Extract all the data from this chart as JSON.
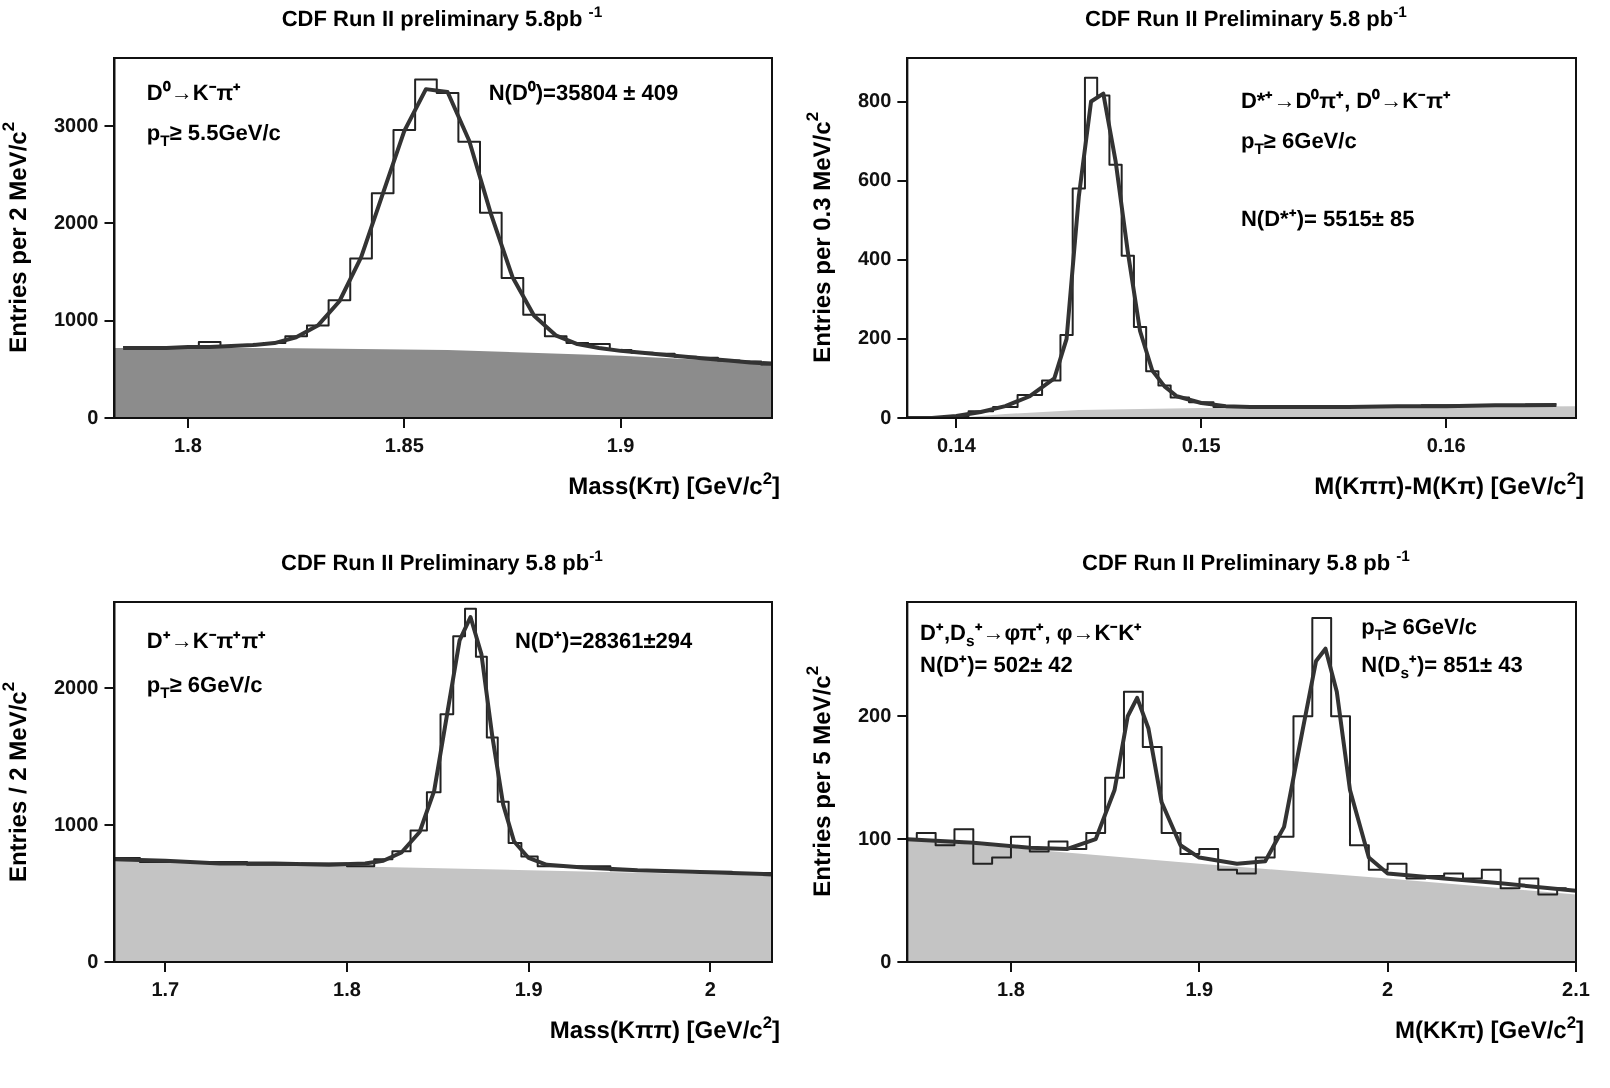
{
  "chart_data": [
    {
      "type": "step",
      "title": "CDF Run II preliminary 5.8pb $^{-1}$",
      "xlabel": "Mass(Kπ)  [GeV/c$^{2}$]",
      "ylabel": "Entries per 2 MeV/c$^{2}$",
      "annotations": [
        "D⁰→K⁻π⁺",
        "p$_{T}$≥ 5.5GeV/c",
        "N(D⁰)=35804 ± 409"
      ],
      "xlim": [
        1.783,
        1.935
      ],
      "xticks": [
        1.8,
        1.85,
        1.9
      ],
      "ylim": [
        0,
        3700
      ],
      "yticks": [
        0,
        1000,
        2000,
        3000
      ],
      "series": [
        {
          "type": "area",
          "color": "#8c8c8c",
          "x": [
            1.783,
            1.82,
            1.86,
            1.9,
            1.935
          ],
          "values": [
            720,
            720,
            700,
            640,
            560
          ]
        },
        {
          "type": "step",
          "color": "#222222",
          "x": [
            1.785,
            1.79,
            1.795,
            1.8,
            1.805,
            1.81,
            1.815,
            1.82,
            1.825,
            1.83,
            1.835,
            1.84,
            1.845,
            1.85,
            1.855,
            1.86,
            1.865,
            1.87,
            1.875,
            1.88,
            1.885,
            1.89,
            1.895,
            1.9,
            1.905,
            1.91,
            1.915,
            1.92,
            1.925,
            1.93,
            1.935
          ],
          "values": [
            730,
            710,
            730,
            720,
            780,
            740,
            750,
            770,
            840,
            950,
            1210,
            1640,
            2310,
            2960,
            3480,
            3340,
            2840,
            2110,
            1440,
            1060,
            840,
            770,
            760,
            700,
            670,
            660,
            630,
            620,
            590,
            580,
            550
          ]
        },
        {
          "type": "line",
          "color": "#333333",
          "x": [
            1.785,
            1.79,
            1.795,
            1.8,
            1.805,
            1.81,
            1.815,
            1.82,
            1.825,
            1.83,
            1.835,
            1.84,
            1.845,
            1.85,
            1.855,
            1.86,
            1.865,
            1.87,
            1.875,
            1.88,
            1.885,
            1.89,
            1.895,
            1.9,
            1.905,
            1.91,
            1.915,
            1.92,
            1.925,
            1.93,
            1.935
          ],
          "values": [
            720,
            720,
            720,
            730,
            730,
            740,
            750,
            770,
            830,
            950,
            1200,
            1650,
            2300,
            2950,
            3380,
            3350,
            2850,
            2100,
            1450,
            1050,
            850,
            760,
            720,
            690,
            670,
            650,
            630,
            610,
            590,
            570,
            560
          ]
        }
      ]
    },
    {
      "type": "step",
      "title": "CDF Run II Preliminary 5.8 pb$^{-1}$",
      "xlabel": "M(Kππ)-M(Kπ)  [GeV/c$^{2}$]",
      "ylabel": "Entries per 0.3 MeV/c$^{2}$",
      "annotations": [
        "D*⁺→D⁰π⁺, D⁰→K⁻π⁺",
        "p$_{T}$≥ 6GeV/c",
        "N(D*⁺)= 5515± 85"
      ],
      "xlim": [
        0.138,
        0.1653
      ],
      "xticks": [
        0.14,
        0.15,
        0.16
      ],
      "ylim": [
        0,
        910
      ],
      "yticks": [
        0,
        200,
        400,
        600,
        800
      ],
      "series": [
        {
          "type": "area",
          "color": "#c8c8c8",
          "x": [
            0.14,
            0.142,
            0.145,
            0.15,
            0.1653
          ],
          "values": [
            0,
            10,
            20,
            25,
            30
          ]
        },
        {
          "type": "step",
          "color": "#222222",
          "x": [
            0.138,
            0.139,
            0.14,
            0.141,
            0.142,
            0.143,
            0.144,
            0.1445,
            0.145,
            0.1455,
            0.146,
            0.1465,
            0.147,
            0.1475,
            0.148,
            0.1485,
            0.149,
            0.15,
            0.151,
            0.152,
            0.154,
            0.156,
            0.158,
            0.16,
            0.162,
            0.1645
          ],
          "values": [
            0,
            0,
            5,
            17,
            28,
            58,
            95,
            210,
            580,
            860,
            815,
            640,
            410,
            230,
            118,
            82,
            52,
            40,
            28,
            30,
            26,
            30,
            28,
            32,
            31,
            34
          ]
        },
        {
          "type": "line",
          "color": "#333333",
          "x": [
            0.138,
            0.139,
            0.14,
            0.141,
            0.142,
            0.143,
            0.144,
            0.1445,
            0.145,
            0.1455,
            0.146,
            0.1465,
            0.147,
            0.1475,
            0.148,
            0.1485,
            0.149,
            0.15,
            0.151,
            0.152,
            0.154,
            0.156,
            0.158,
            0.16,
            0.162,
            0.1645
          ],
          "values": [
            0,
            0,
            5,
            15,
            30,
            55,
            100,
            200,
            560,
            800,
            820,
            650,
            420,
            220,
            120,
            80,
            55,
            38,
            30,
            28,
            28,
            28,
            30,
            30,
            32,
            33
          ]
        }
      ]
    },
    {
      "type": "step",
      "title": "CDF Run II Preliminary 5.8 pb$^{-1}$",
      "xlabel": "Mass(Kππ)  [GeV/c$^{2}$]",
      "ylabel": "Entries / 2 MeV/c$^{2}$",
      "annotations": [
        "D⁺→K⁻π⁺π⁺",
        "p$_{T}$≥ 6GeV/c",
        "N(D⁺)=28361±294"
      ],
      "xlim": [
        1.672,
        2.034
      ],
      "xticks": [
        1.7,
        1.8,
        1.9,
        2
      ],
      "ylim": [
        0,
        2630
      ],
      "yticks": [
        0,
        1000,
        2000
      ],
      "series": [
        {
          "type": "area",
          "color": "#c4c4c4",
          "x": [
            1.672,
            1.8,
            1.9,
            2.034
          ],
          "values": [
            740,
            700,
            670,
            630
          ]
        },
        {
          "type": "step",
          "color": "#222222",
          "x": [
            1.672,
            1.7,
            1.73,
            1.76,
            1.79,
            1.81,
            1.82,
            1.83,
            1.84,
            1.848,
            1.855,
            1.862,
            1.868,
            1.874,
            1.88,
            1.886,
            1.892,
            1.9,
            1.91,
            1.93,
            1.96,
            1.99,
            2.034
          ],
          "values": [
            760,
            730,
            730,
            710,
            720,
            700,
            750,
            810,
            960,
            1240,
            1810,
            2380,
            2580,
            2230,
            1640,
            1170,
            870,
            770,
            700,
            700,
            670,
            660,
            650
          ]
        },
        {
          "type": "line",
          "color": "#333333",
          "x": [
            1.672,
            1.7,
            1.73,
            1.76,
            1.79,
            1.81,
            1.82,
            1.83,
            1.84,
            1.848,
            1.855,
            1.862,
            1.868,
            1.874,
            1.88,
            1.886,
            1.892,
            1.9,
            1.91,
            1.93,
            1.96,
            1.99,
            2.034
          ],
          "values": [
            750,
            740,
            720,
            720,
            710,
            720,
            740,
            800,
            950,
            1250,
            1800,
            2350,
            2520,
            2250,
            1650,
            1150,
            880,
            760,
            710,
            690,
            670,
            660,
            640
          ]
        }
      ]
    },
    {
      "type": "step",
      "title": "CDF Run II Preliminary 5.8 pb $^{-1}$",
      "xlabel": "M(KKπ)  [GeV/c$^{2}$]",
      "ylabel": "Entries per 5 MeV/c$^{2}$",
      "annotations": [
        "D⁺,D$_{s}$⁺→φπ⁺, φ→K⁻K⁺",
        "N(D⁺)=  502± 42",
        "p$_{T}$≥ 6GeV/c",
        "N(D$_{s}$⁺)=  851± 43"
      ],
      "xlim": [
        1.745,
        2.1
      ],
      "xticks": [
        1.8,
        1.9,
        2,
        2.1
      ],
      "ylim": [
        0,
        293
      ],
      "yticks": [
        0,
        100,
        200
      ],
      "series": [
        {
          "type": "area",
          "color": "#c4c4c4",
          "x": [
            1.745,
            1.9,
            2.0,
            2.1
          ],
          "values": [
            100,
            80,
            68,
            55
          ]
        },
        {
          "type": "step",
          "color": "#222222",
          "x": [
            1.745,
            1.755,
            1.765,
            1.775,
            1.785,
            1.795,
            1.805,
            1.815,
            1.825,
            1.835,
            1.845,
            1.855,
            1.865,
            1.875,
            1.885,
            1.895,
            1.905,
            1.915,
            1.925,
            1.935,
            1.945,
            1.955,
            1.965,
            1.975,
            1.985,
            1.995,
            2.005,
            2.015,
            2.025,
            2.035,
            2.045,
            2.055,
            2.065,
            2.075,
            2.085,
            2.095
          ],
          "values": [
            100,
            105,
            95,
            108,
            80,
            85,
            102,
            90,
            98,
            92,
            105,
            150,
            220,
            175,
            105,
            88,
            92,
            75,
            72,
            85,
            102,
            200,
            280,
            200,
            95,
            75,
            80,
            68,
            70,
            72,
            68,
            75,
            60,
            68,
            55,
            60
          ]
        },
        {
          "type": "line",
          "color": "#333333",
          "x": [
            1.745,
            1.78,
            1.81,
            1.83,
            1.845,
            1.855,
            1.862,
            1.867,
            1.873,
            1.88,
            1.89,
            1.9,
            1.92,
            1.935,
            1.945,
            1.955,
            1.962,
            1.967,
            1.973,
            1.98,
            1.99,
            2.0,
            2.03,
            2.06,
            2.1
          ],
          "values": [
            100,
            97,
            93,
            92,
            100,
            140,
            200,
            215,
            190,
            130,
            95,
            85,
            80,
            82,
            110,
            190,
            245,
            255,
            220,
            140,
            85,
            72,
            68,
            64,
            58
          ]
        }
      ]
    }
  ]
}
